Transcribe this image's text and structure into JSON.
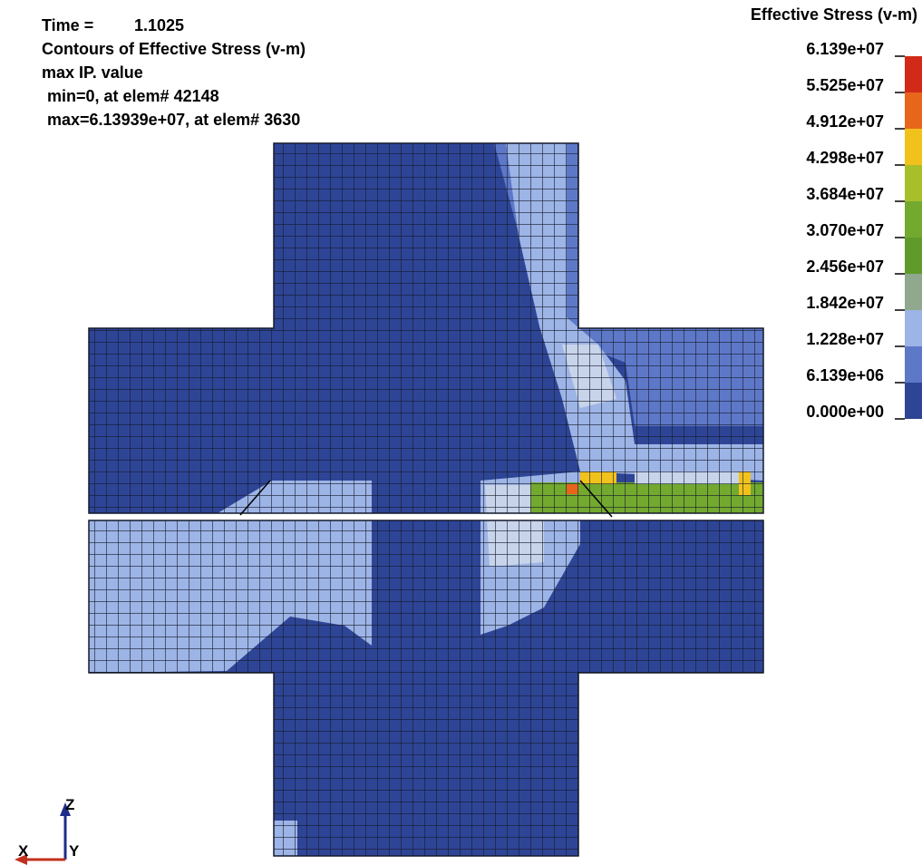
{
  "header": {
    "time_label": "Time =",
    "time_value": "1.1025",
    "title": "Contours of Effective Stress (v-m)",
    "subtitle": "max IP. value",
    "min_line": "min=0, at elem# 42148",
    "max_line": "max=6.13939e+07, at elem# 3630"
  },
  "legend": {
    "title": "Effective Stress (v-m)",
    "labels": [
      "6.139e+07",
      "5.525e+07",
      "4.912e+07",
      "4.298e+07",
      "3.684e+07",
      "3.070e+07",
      "2.456e+07",
      "1.842e+07",
      "1.228e+07",
      "6.139e+06",
      "0.000e+00"
    ],
    "colors": [
      "#d22a18",
      "#e8661c",
      "#f2c21c",
      "#a8bf2a",
      "#73a92f",
      "#5f9a2b",
      "#8fa88e",
      "#9db4e6",
      "#5e78c8",
      "#2e4596"
    ]
  },
  "triad": {
    "z": "Z",
    "x": "X",
    "y": "Y"
  }
}
